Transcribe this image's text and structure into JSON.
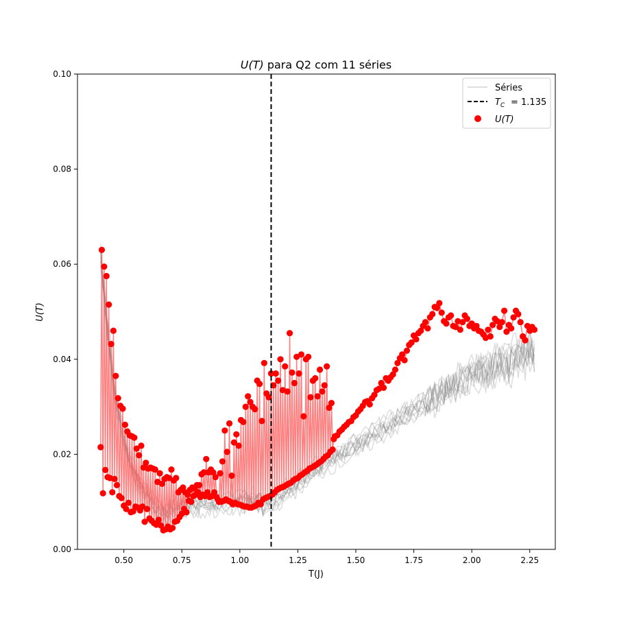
{
  "chart_data": {
    "type": "scatter",
    "title_prefix": "U(T)",
    "title_suffix": " para Q2 com 11 séries",
    "xlabel": "T(J)",
    "ylabel": "U(T)",
    "xlim": [
      0.3,
      2.36
    ],
    "ylim": [
      0.0,
      0.1
    ],
    "xticks": [
      "0.50",
      "0.75",
      "1.00",
      "1.25",
      "1.50",
      "1.75",
      "2.00",
      "2.25"
    ],
    "xtick_values": [
      0.5,
      0.75,
      1.0,
      1.25,
      1.5,
      1.75,
      2.0,
      2.25
    ],
    "yticks": [
      "0.00",
      "0.02",
      "0.04",
      "0.06",
      "0.08",
      "0.10"
    ],
    "ytick_values": [
      0.0,
      0.02,
      0.04,
      0.06,
      0.08,
      0.1
    ],
    "grid": false,
    "legend_position": "top-right",
    "legend": {
      "series_label": "Séries",
      "tc_label": "= 1.135",
      "u_label": "U(T)"
    },
    "critical_temperature": 1.135,
    "background_series_count": 11,
    "series": [
      {
        "name": "U(T)",
        "color": "#ff0000",
        "points": [
          [
            0.4,
            0.0215
          ],
          [
            0.405,
            0.063
          ],
          [
            0.41,
            0.0118
          ],
          [
            0.415,
            0.0595
          ],
          [
            0.42,
            0.0167
          ],
          [
            0.425,
            0.0575
          ],
          [
            0.43,
            0.0152
          ],
          [
            0.435,
            0.0515
          ],
          [
            0.44,
            0.015
          ],
          [
            0.445,
            0.0432
          ],
          [
            0.45,
            0.012
          ],
          [
            0.455,
            0.046
          ],
          [
            0.46,
            0.0148
          ],
          [
            0.465,
            0.0365
          ],
          [
            0.47,
            0.0135
          ],
          [
            0.475,
            0.0318
          ],
          [
            0.48,
            0.0112
          ],
          [
            0.485,
            0.0302
          ],
          [
            0.49,
            0.0108
          ],
          [
            0.495,
            0.0296
          ],
          [
            0.5,
            0.0092
          ],
          [
            0.505,
            0.0262
          ],
          [
            0.51,
            0.0085
          ],
          [
            0.515,
            0.0248
          ],
          [
            0.52,
            0.0098
          ],
          [
            0.525,
            0.024
          ],
          [
            0.53,
            0.0078
          ],
          [
            0.535,
            0.0238
          ],
          [
            0.54,
            0.008
          ],
          [
            0.545,
            0.0235
          ],
          [
            0.55,
            0.009
          ],
          [
            0.555,
            0.0212
          ],
          [
            0.56,
            0.0088
          ],
          [
            0.565,
            0.0198
          ],
          [
            0.57,
            0.0082
          ],
          [
            0.575,
            0.0218
          ],
          [
            0.58,
            0.009
          ],
          [
            0.585,
            0.0172
          ],
          [
            0.59,
            0.0058
          ],
          [
            0.595,
            0.0182
          ],
          [
            0.6,
            0.0085
          ],
          [
            0.605,
            0.017
          ],
          [
            0.61,
            0.0065
          ],
          [
            0.615,
            0.0172
          ],
          [
            0.62,
            0.006
          ],
          [
            0.625,
            0.017
          ],
          [
            0.63,
            0.0055
          ],
          [
            0.635,
            0.0168
          ],
          [
            0.64,
            0.0052
          ],
          [
            0.645,
            0.0142
          ],
          [
            0.65,
            0.0062
          ],
          [
            0.655,
            0.016
          ],
          [
            0.66,
            0.005
          ],
          [
            0.665,
            0.0138
          ],
          [
            0.67,
            0.004
          ],
          [
            0.675,
            0.0148
          ],
          [
            0.68,
            0.0042
          ],
          [
            0.685,
            0.0152
          ],
          [
            0.69,
            0.0048
          ],
          [
            0.695,
            0.015
          ],
          [
            0.7,
            0.0042
          ],
          [
            0.705,
            0.0168
          ],
          [
            0.71,
            0.0045
          ],
          [
            0.715,
            0.0145
          ],
          [
            0.72,
            0.0058
          ],
          [
            0.725,
            0.015
          ],
          [
            0.73,
            0.006
          ],
          [
            0.735,
            0.012
          ],
          [
            0.74,
            0.0068
          ],
          [
            0.745,
            0.0125
          ],
          [
            0.75,
            0.0075
          ],
          [
            0.755,
            0.013
          ],
          [
            0.76,
            0.0085
          ],
          [
            0.765,
            0.012
          ],
          [
            0.77,
            0.0078
          ],
          [
            0.775,
            0.0115
          ],
          [
            0.78,
            0.0102
          ],
          [
            0.785,
            0.0125
          ],
          [
            0.79,
            0.01
          ],
          [
            0.795,
            0.013
          ],
          [
            0.8,
            0.0112
          ],
          [
            0.805,
            0.0128
          ],
          [
            0.81,
            0.0115
          ],
          [
            0.815,
            0.0135
          ],
          [
            0.82,
            0.012
          ],
          [
            0.825,
            0.0135
          ],
          [
            0.83,
            0.011
          ],
          [
            0.835,
            0.0158
          ],
          [
            0.84,
            0.0115
          ],
          [
            0.845,
            0.0162
          ],
          [
            0.85,
            0.0112
          ],
          [
            0.855,
            0.019
          ],
          [
            0.86,
            0.012
          ],
          [
            0.865,
            0.0162
          ],
          [
            0.87,
            0.011
          ],
          [
            0.875,
            0.0168
          ],
          [
            0.88,
            0.0112
          ],
          [
            0.885,
            0.0162
          ],
          [
            0.89,
            0.012
          ],
          [
            0.895,
            0.0152
          ],
          [
            0.9,
            0.011
          ],
          [
            0.905,
            0.0105
          ],
          [
            0.91,
            0.01
          ],
          [
            0.915,
            0.016
          ],
          [
            0.92,
            0.01
          ],
          [
            0.925,
            0.0185
          ],
          [
            0.93,
            0.0102
          ],
          [
            0.935,
            0.025
          ],
          [
            0.94,
            0.0105
          ],
          [
            0.945,
            0.0205
          ],
          [
            0.95,
            0.0102
          ],
          [
            0.955,
            0.0265
          ],
          [
            0.96,
            0.01
          ],
          [
            0.965,
            0.0155
          ],
          [
            0.97,
            0.0095
          ],
          [
            0.975,
            0.0225
          ],
          [
            0.98,
            0.0098
          ],
          [
            0.985,
            0.0242
          ],
          [
            0.99,
            0.0095
          ],
          [
            0.995,
            0.0218
          ],
          [
            1.0,
            0.0094
          ],
          [
            1.005,
            0.0272
          ],
          [
            1.01,
            0.0092
          ],
          [
            1.015,
            0.0268
          ],
          [
            1.02,
            0.009
          ],
          [
            1.025,
            0.03
          ],
          [
            1.03,
            0.009
          ],
          [
            1.035,
            0.0322
          ],
          [
            1.04,
            0.0088
          ],
          [
            1.045,
            0.031
          ],
          [
            1.05,
            0.0088
          ],
          [
            1.055,
            0.03
          ],
          [
            1.06,
            0.009
          ],
          [
            1.065,
            0.0295
          ],
          [
            1.07,
            0.0092
          ],
          [
            1.075,
            0.0355
          ],
          [
            1.08,
            0.0098
          ],
          [
            1.085,
            0.0348
          ],
          [
            1.09,
            0.0095
          ],
          [
            1.095,
            0.027
          ],
          [
            1.1,
            0.0105
          ],
          [
            1.105,
            0.0392
          ],
          [
            1.11,
            0.0108
          ],
          [
            1.115,
            0.0328
          ],
          [
            1.12,
            0.011
          ],
          [
            1.125,
            0.032
          ],
          [
            1.13,
            0.0112
          ],
          [
            1.135,
            0.037
          ],
          [
            1.14,
            0.0115
          ],
          [
            1.145,
            0.0345
          ],
          [
            1.15,
            0.012
          ],
          [
            1.155,
            0.037
          ],
          [
            1.16,
            0.0125
          ],
          [
            1.165,
            0.0355
          ],
          [
            1.17,
            0.0128
          ],
          [
            1.175,
            0.04
          ],
          [
            1.18,
            0.013
          ],
          [
            1.185,
            0.0335
          ],
          [
            1.19,
            0.0132
          ],
          [
            1.195,
            0.0385
          ],
          [
            1.2,
            0.0135
          ],
          [
            1.205,
            0.0332
          ],
          [
            1.21,
            0.0138
          ],
          [
            1.215,
            0.0455
          ],
          [
            1.22,
            0.014
          ],
          [
            1.225,
            0.0372
          ],
          [
            1.23,
            0.0145
          ],
          [
            1.235,
            0.035
          ],
          [
            1.24,
            0.0148
          ],
          [
            1.245,
            0.0405
          ],
          [
            1.25,
            0.015
          ],
          [
            1.255,
            0.037
          ],
          [
            1.26,
            0.0155
          ],
          [
            1.265,
            0.041
          ],
          [
            1.27,
            0.0158
          ],
          [
            1.275,
            0.028
          ],
          [
            1.28,
            0.0162
          ],
          [
            1.285,
            0.04
          ],
          [
            1.29,
            0.0165
          ],
          [
            1.295,
            0.0405
          ],
          [
            1.3,
            0.017
          ],
          [
            1.305,
            0.032
          ],
          [
            1.31,
            0.0172
          ],
          [
            1.315,
            0.0355
          ],
          [
            1.32,
            0.0175
          ],
          [
            1.325,
            0.036
          ],
          [
            1.33,
            0.0178
          ],
          [
            1.335,
            0.0322
          ],
          [
            1.34,
            0.0182
          ],
          [
            1.345,
            0.0378
          ],
          [
            1.35,
            0.0185
          ],
          [
            1.355,
            0.0332
          ],
          [
            1.36,
            0.019
          ],
          [
            1.365,
            0.0345
          ],
          [
            1.37,
            0.0195
          ],
          [
            1.375,
            0.0385
          ],
          [
            1.38,
            0.0198
          ],
          [
            1.385,
            0.0298
          ],
          [
            1.39,
            0.0205
          ],
          [
            1.395,
            0.0308
          ],
          [
            1.4,
            0.021
          ],
          [
            1.405,
            0.0232
          ],
          [
            1.41,
            0.0238
          ],
          [
            1.42,
            0.024
          ],
          [
            1.43,
            0.0248
          ],
          [
            1.44,
            0.0252
          ],
          [
            1.45,
            0.0258
          ],
          [
            1.46,
            0.0262
          ],
          [
            1.47,
            0.0268
          ],
          [
            1.48,
            0.027
          ],
          [
            1.49,
            0.0278
          ],
          [
            1.5,
            0.0282
          ],
          [
            1.51,
            0.029
          ],
          [
            1.52,
            0.0295
          ],
          [
            1.53,
            0.0302
          ],
          [
            1.54,
            0.031
          ],
          [
            1.55,
            0.0312
          ],
          [
            1.56,
            0.0305
          ],
          [
            1.57,
            0.0318
          ],
          [
            1.58,
            0.0325
          ],
          [
            1.59,
            0.0335
          ],
          [
            1.6,
            0.0338
          ],
          [
            1.61,
            0.035
          ],
          [
            1.62,
            0.034
          ],
          [
            1.63,
            0.036
          ],
          [
            1.64,
            0.0355
          ],
          [
            1.65,
            0.0362
          ],
          [
            1.66,
            0.0368
          ],
          [
            1.67,
            0.0378
          ],
          [
            1.68,
            0.0392
          ],
          [
            1.69,
            0.0402
          ],
          [
            1.7,
            0.041
          ],
          [
            1.71,
            0.0398
          ],
          [
            1.72,
            0.0418
          ],
          [
            1.73,
            0.043
          ],
          [
            1.74,
            0.0435
          ],
          [
            1.75,
            0.045
          ],
          [
            1.76,
            0.0442
          ],
          [
            1.77,
            0.0455
          ],
          [
            1.78,
            0.046
          ],
          [
            1.79,
            0.047
          ],
          [
            1.8,
            0.0478
          ],
          [
            1.81,
            0.0465
          ],
          [
            1.82,
            0.0488
          ],
          [
            1.83,
            0.0495
          ],
          [
            1.84,
            0.051
          ],
          [
            1.85,
            0.0508
          ],
          [
            1.86,
            0.0518
          ],
          [
            1.87,
            0.0498
          ],
          [
            1.88,
            0.048
          ],
          [
            1.89,
            0.0475
          ],
          [
            1.9,
            0.0488
          ],
          [
            1.91,
            0.0492
          ],
          [
            1.92,
            0.047
          ],
          [
            1.93,
            0.0468
          ],
          [
            1.94,
            0.048
          ],
          [
            1.95,
            0.0462
          ],
          [
            1.96,
            0.0478
          ],
          [
            1.97,
            0.0492
          ],
          [
            1.98,
            0.0485
          ],
          [
            1.99,
            0.047
          ],
          [
            2.0,
            0.0475
          ],
          [
            2.01,
            0.0465
          ],
          [
            2.02,
            0.047
          ],
          [
            2.03,
            0.046
          ],
          [
            2.04,
            0.0458
          ],
          [
            2.05,
            0.0452
          ],
          [
            2.06,
            0.0445
          ],
          [
            2.07,
            0.0462
          ],
          [
            2.08,
            0.0448
          ],
          [
            2.09,
            0.0472
          ],
          [
            2.1,
            0.0485
          ],
          [
            2.11,
            0.048
          ],
          [
            2.12,
            0.0468
          ],
          [
            2.13,
            0.0478
          ],
          [
            2.14,
            0.0502
          ],
          [
            2.15,
            0.0458
          ],
          [
            2.16,
            0.0472
          ],
          [
            2.17,
            0.0465
          ],
          [
            2.18,
            0.0488
          ],
          [
            2.19,
            0.0502
          ],
          [
            2.2,
            0.0495
          ],
          [
            2.21,
            0.0478
          ],
          [
            2.22,
            0.0448
          ],
          [
            2.23,
            0.044
          ],
          [
            2.24,
            0.047
          ],
          [
            2.25,
            0.046
          ],
          [
            2.26,
            0.0468
          ],
          [
            2.27,
            0.0462
          ]
        ]
      }
    ]
  }
}
